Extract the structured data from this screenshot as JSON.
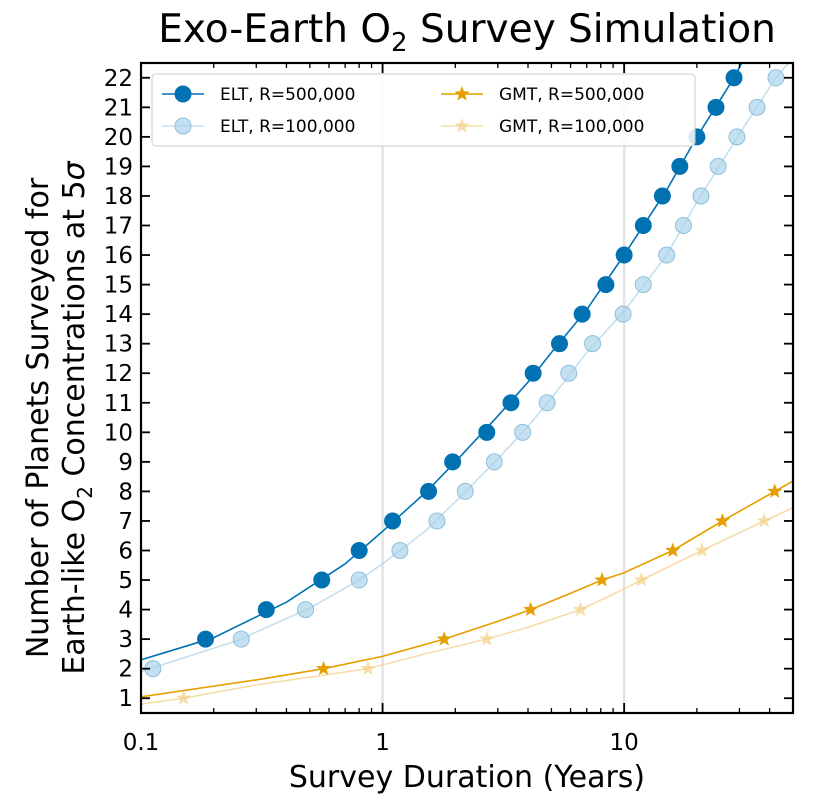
{
  "chart_data": {
    "type": "line",
    "title_main": "Exo-Earth O",
    "title_sub": "2",
    "title_rest": " Survey Simulation",
    "xlabel": "Survey Duration (Years)",
    "ylabel_line1": "Number of Planets Surveyed for",
    "ylabel_line2_a": "Earth-like O",
    "ylabel_line2_sub": "2",
    "ylabel_line2_b": " Concentrations at 5",
    "ylabel_line2_sigma": "σ",
    "x_scale": "log",
    "xlim": [
      0.1,
      50
    ],
    "ylim": [
      0.5,
      22.5
    ],
    "x_ticks": [
      0.1,
      1,
      10
    ],
    "x_tick_labels": [
      "0.1",
      "1",
      "10"
    ],
    "y_ticks": [
      1,
      2,
      3,
      4,
      5,
      6,
      7,
      8,
      9,
      10,
      11,
      12,
      13,
      14,
      15,
      16,
      17,
      18,
      19,
      20,
      21,
      22
    ],
    "grid": "vertical at decades",
    "legend_position": "top-left",
    "series": [
      {
        "name": "ELT, R=500,000",
        "color": "#0072b2",
        "marker": "circle",
        "opacity": 1.0,
        "points": [
          [
            0.185,
            3
          ],
          [
            0.33,
            4
          ],
          [
            0.56,
            5
          ],
          [
            0.8,
            6
          ],
          [
            1.1,
            7
          ],
          [
            1.55,
            8
          ],
          [
            1.95,
            9
          ],
          [
            2.7,
            10
          ],
          [
            3.4,
            11
          ],
          [
            4.2,
            12
          ],
          [
            5.4,
            13
          ],
          [
            6.7,
            14
          ],
          [
            8.4,
            15
          ],
          [
            10.0,
            16
          ],
          [
            12.0,
            17
          ],
          [
            14.4,
            18
          ],
          [
            17.0,
            19
          ],
          [
            20.0,
            20
          ],
          [
            24.0,
            21
          ],
          [
            28.5,
            22
          ]
        ],
        "curve": [
          [
            0.1,
            2.3
          ],
          [
            0.2,
            3.05
          ],
          [
            0.4,
            4.25
          ],
          [
            0.7,
            5.55
          ],
          [
            1,
            6.65
          ],
          [
            1.5,
            7.95
          ],
          [
            2,
            9.0
          ],
          [
            3,
            10.55
          ],
          [
            4,
            11.7
          ],
          [
            5,
            12.7
          ],
          [
            7,
            14.15
          ],
          [
            10,
            16.0
          ],
          [
            15,
            18.2
          ],
          [
            20,
            20.0
          ],
          [
            28.5,
            22.0
          ],
          [
            33,
            23.0
          ]
        ]
      },
      {
        "name": "ELT, R=100,000",
        "color": "#a6cfe8",
        "marker": "circle",
        "opacity": 0.65,
        "points": [
          [
            0.112,
            2
          ],
          [
            0.26,
            3
          ],
          [
            0.48,
            4
          ],
          [
            0.8,
            5
          ],
          [
            1.18,
            6
          ],
          [
            1.68,
            7
          ],
          [
            2.2,
            8
          ],
          [
            2.9,
            9
          ],
          [
            3.8,
            10
          ],
          [
            4.8,
            11
          ],
          [
            5.9,
            12
          ],
          [
            7.4,
            13
          ],
          [
            9.9,
            14
          ],
          [
            12.0,
            15
          ],
          [
            15.0,
            16
          ],
          [
            17.6,
            17
          ],
          [
            20.8,
            18
          ],
          [
            24.5,
            19
          ],
          [
            29.3,
            20
          ],
          [
            35.5,
            21
          ],
          [
            42.5,
            22
          ]
        ],
        "curve": [
          [
            0.1,
            1.9
          ],
          [
            0.25,
            2.95
          ],
          [
            0.5,
            4.05
          ],
          [
            0.8,
            5.0
          ],
          [
            1,
            5.55
          ],
          [
            1.5,
            6.65
          ],
          [
            2,
            7.65
          ],
          [
            3,
            9.1
          ],
          [
            4,
            10.2
          ],
          [
            5,
            11.15
          ],
          [
            7,
            12.7
          ],
          [
            10,
            14.1
          ],
          [
            15,
            16.0
          ],
          [
            20,
            17.8
          ],
          [
            30,
            20.1
          ],
          [
            42.5,
            22.0
          ],
          [
            48,
            22.5
          ]
        ]
      },
      {
        "name": "GMT, R=500,000",
        "color": "#e69f00",
        "marker": "star",
        "opacity": 1.0,
        "points": [
          [
            0.57,
            2
          ],
          [
            1.8,
            3
          ],
          [
            4.1,
            4
          ],
          [
            8.1,
            5
          ],
          [
            15.9,
            6
          ],
          [
            25.5,
            7
          ],
          [
            42.0,
            8
          ]
        ],
        "curve": [
          [
            0.1,
            1.05
          ],
          [
            0.3,
            1.62
          ],
          [
            0.57,
            2.0
          ],
          [
            1,
            2.42
          ],
          [
            1.8,
            3.0
          ],
          [
            3,
            3.6
          ],
          [
            4.1,
            4.0
          ],
          [
            6,
            4.55
          ],
          [
            8.1,
            5.0
          ],
          [
            10,
            5.25
          ],
          [
            15.9,
            6.0
          ],
          [
            25.5,
            7.0
          ],
          [
            42,
            8.0
          ],
          [
            50,
            8.35
          ]
        ]
      },
      {
        "name": "GMT, R=100,000",
        "color": "#f2cf85",
        "marker": "star",
        "opacity": 0.7,
        "points": [
          [
            0.15,
            1
          ],
          [
            0.87,
            2
          ],
          [
            2.7,
            3
          ],
          [
            6.6,
            4
          ],
          [
            11.8,
            5
          ],
          [
            21.0,
            6
          ],
          [
            38.0,
            7
          ]
        ],
        "curve": [
          [
            0.1,
            0.8
          ],
          [
            0.15,
            1.0
          ],
          [
            0.3,
            1.45
          ],
          [
            0.87,
            2.0
          ],
          [
            1.5,
            2.5
          ],
          [
            2.7,
            3.0
          ],
          [
            4,
            3.4
          ],
          [
            6.6,
            4.0
          ],
          [
            10,
            4.7
          ],
          [
            11.8,
            5.0
          ],
          [
            21,
            6.0
          ],
          [
            38,
            7.0
          ],
          [
            50,
            7.45
          ]
        ]
      }
    ]
  }
}
